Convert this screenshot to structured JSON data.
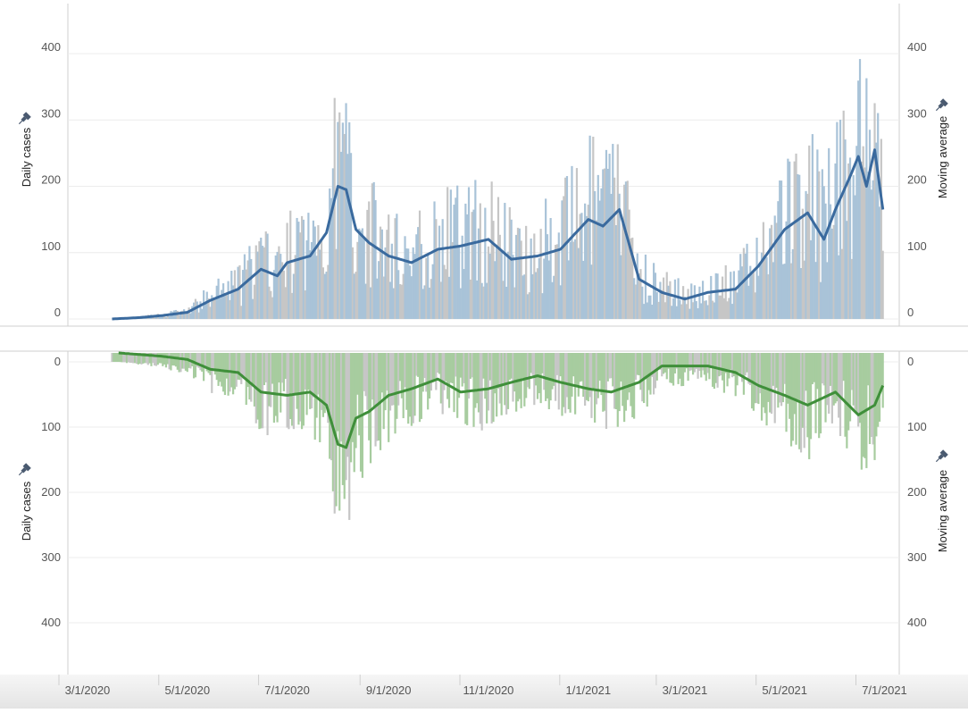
{
  "chart_data": [
    {
      "type": "bar",
      "panel": "top",
      "note_overlay": "daily bars with moving-average line",
      "left_axis": {
        "label": "Daily cases",
        "ticks": [
          0,
          100,
          200,
          300,
          400
        ],
        "ylim": [
          0,
          450
        ]
      },
      "right_axis": {
        "label": "Moving average",
        "ticks": [
          0,
          100,
          200,
          300,
          400
        ],
        "ylim": [
          0,
          450
        ]
      },
      "colors": {
        "bar_primary": "#a9c3d8",
        "bar_alt": "#c6c6c6",
        "line": "#3a6a9e"
      },
      "x_ticks": [
        "3/1/2020",
        "5/1/2020",
        "7/1/2020",
        "9/1/2020",
        "11/1/2020",
        "1/1/2021",
        "3/1/2021",
        "5/1/2021",
        "7/1/2021"
      ],
      "series": [
        {
          "kind": "bars",
          "label": "Daily cases"
        },
        {
          "kind": "line",
          "label": "Moving average",
          "x": [
            "2020-03-16",
            "2020-04-01",
            "2020-04-15",
            "2020-05-01",
            "2020-05-15",
            "2020-06-01",
            "2020-06-15",
            "2020-06-25",
            "2020-07-01",
            "2020-07-15",
            "2020-07-25",
            "2020-08-01",
            "2020-08-06",
            "2020-08-12",
            "2020-08-20",
            "2020-09-01",
            "2020-09-15",
            "2020-10-01",
            "2020-10-15",
            "2020-11-01",
            "2020-11-15",
            "2020-12-01",
            "2020-12-15",
            "2021-01-01",
            "2021-01-10",
            "2021-01-20",
            "2021-02-01",
            "2021-02-15",
            "2021-03-01",
            "2021-03-15",
            "2021-04-01",
            "2021-04-15",
            "2021-05-01",
            "2021-05-15",
            "2021-05-25",
            "2021-06-01",
            "2021-06-10",
            "2021-06-15",
            "2021-06-20",
            "2021-06-25",
            "2021-06-30"
          ],
          "y": [
            0,
            2,
            5,
            10,
            28,
            45,
            75,
            65,
            85,
            95,
            130,
            200,
            195,
            135,
            115,
            95,
            85,
            105,
            110,
            120,
            90,
            95,
            105,
            150,
            140,
            165,
            60,
            40,
            30,
            40,
            45,
            80,
            135,
            160,
            120,
            165,
            215,
            245,
            200,
            255,
            165
          ]
        }
      ]
    },
    {
      "type": "bar",
      "panel": "bottom",
      "orientation": "inverted",
      "left_axis": {
        "label": "Daily cases",
        "ticks": [
          0,
          100,
          200,
          300,
          400
        ],
        "ylim": [
          0,
          400
        ]
      },
      "right_axis": {
        "label": "Moving average",
        "ticks": [
          0,
          100,
          200,
          300,
          400
        ],
        "ylim": [
          0,
          400
        ]
      },
      "colors": {
        "bar_primary": "#a7cc9f",
        "bar_alt": "#c6c6c6",
        "line": "#3f8f3a"
      },
      "series": [
        {
          "kind": "bars",
          "label": "Daily cases"
        },
        {
          "kind": "line",
          "label": "Moving average",
          "x": [
            "2020-03-20",
            "2020-04-15",
            "2020-05-01",
            "2020-05-15",
            "2020-06-01",
            "2020-06-15",
            "2020-07-01",
            "2020-07-15",
            "2020-07-25",
            "2020-08-01",
            "2020-08-06",
            "2020-08-12",
            "2020-08-20",
            "2020-09-01",
            "2020-09-15",
            "2020-10-01",
            "2020-10-15",
            "2020-11-01",
            "2020-11-15",
            "2020-12-01",
            "2020-12-15",
            "2021-01-01",
            "2021-01-15",
            "2021-02-01",
            "2021-02-15",
            "2021-03-01",
            "2021-03-15",
            "2021-04-01",
            "2021-04-15",
            "2021-05-01",
            "2021-05-15",
            "2021-06-01",
            "2021-06-15",
            "2021-06-25",
            "2021-06-30"
          ],
          "y": [
            0,
            5,
            10,
            25,
            30,
            60,
            65,
            60,
            80,
            140,
            145,
            100,
            90,
            65,
            55,
            40,
            60,
            55,
            45,
            35,
            45,
            55,
            60,
            45,
            20,
            20,
            20,
            30,
            50,
            65,
            80,
            60,
            95,
            80,
            50
          ]
        }
      ]
    }
  ]
}
